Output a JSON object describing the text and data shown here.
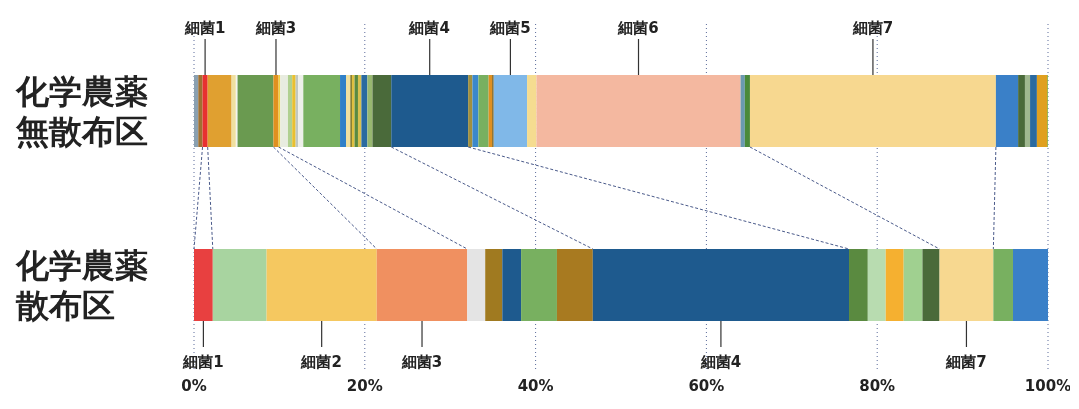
{
  "chart_data": {
    "type": "bar",
    "orientation": "horizontal",
    "stacked": true,
    "categories": [
      "化学農薬無散布区",
      "化学農薬散布区"
    ],
    "series": [
      {
        "values": [
          0.5,
          null
        ],
        "color": "#8aa0b0"
      },
      {
        "values": [
          0.5,
          null
        ],
        "color": "#a07030"
      },
      {
        "name": "細菌1",
        "values": [
          0.6,
          2.2
        ],
        "colors": [
          "#e83030",
          "#e84040"
        ]
      },
      {
        "values": [
          2.8,
          null
        ],
        "color": "#e0a030"
      },
      {
        "values": [
          0.5,
          null
        ],
        "color": "#f0e0a0"
      },
      {
        "values": [
          0.2,
          null
        ],
        "color": "#f4f4f0"
      },
      {
        "values": [
          4.2,
          null
        ],
        "color": "#6a9a50"
      },
      {
        "values": [
          null,
          6.3
        ],
        "color": "#a8d4a0"
      },
      {
        "name": "細菌2",
        "values": [
          null,
          12.9
        ],
        "color": "#f5c860"
      },
      {
        "name": "細菌3",
        "values": [
          0.6,
          10.6
        ],
        "colors": [
          "#e09020",
          "#f09060"
        ]
      },
      {
        "values": [
          0.2,
          null
        ],
        "color": "#f0d040"
      },
      {
        "values": [
          0.9,
          null
        ],
        "color": "#e8ece0"
      },
      {
        "values": [
          0.5,
          null
        ],
        "color": "#b0d090"
      },
      {
        "values": [
          0.4,
          null
        ],
        "color": "#e8c030"
      },
      {
        "values": [
          0.3,
          null
        ],
        "color": "#c0c8c0"
      },
      {
        "values": [
          0.6,
          null
        ],
        "color": "#eef0ea"
      },
      {
        "values": [
          4.3,
          null
        ],
        "color": "#78b060"
      },
      {
        "values": [
          0.7,
          null
        ],
        "color": "#3080c8"
      },
      {
        "values": [
          0.5,
          null
        ],
        "color": "#f0e0a0"
      },
      {
        "values": [
          0.2,
          null
        ],
        "color": "#8a8030"
      },
      {
        "values": [
          0.3,
          null
        ],
        "color": "#e0c040"
      },
      {
        "values": [
          0.4,
          null
        ],
        "color": "#5a8a40"
      },
      {
        "values": [
          0.4,
          null
        ],
        "color": "#d8c050"
      },
      {
        "values": [
          0.7,
          null
        ],
        "color": "#2a6aa0"
      },
      {
        "values": [
          0.6,
          null
        ],
        "color": "#98b870"
      },
      {
        "values": [
          2.2,
          null
        ],
        "color": "#4a6a3a"
      },
      {
        "values": [
          null,
          2.1
        ],
        "color": "#e4e4e4"
      },
      {
        "values": [
          null,
          2.0
        ],
        "color": "#a07a20"
      },
      {
        "values": [
          null,
          2.2
        ],
        "color": "#1e5a8e"
      },
      {
        "values": [
          null,
          4.2
        ],
        "color": "#78b060"
      },
      {
        "values": [
          null,
          4.2
        ],
        "color": "#a87a20"
      },
      {
        "name": "細菌4",
        "values": [
          9.0,
          30.0
        ],
        "colors": [
          "#1e5a8e",
          "#1e5a8e"
        ]
      },
      {
        "values": [
          0.5,
          null
        ],
        "color": "#a09040"
      },
      {
        "values": [
          0.7,
          null
        ],
        "color": "#3a88cc"
      },
      {
        "values": [
          1.2,
          null
        ],
        "color": "#78b060"
      },
      {
        "values": [
          0.4,
          null
        ],
        "color": "#e09020"
      },
      {
        "values": [
          0.2,
          null
        ],
        "color": "#8a7030"
      },
      {
        "name": "細菌5",
        "values": [
          3.9,
          null
        ],
        "color": "#80b8e8"
      },
      {
        "values": [
          1.1,
          null
        ],
        "color": "#f5dc90"
      },
      {
        "name": "細菌6",
        "values": [
          23.9,
          null
        ],
        "color": "#f4b8a0"
      },
      {
        "values": [
          0.5,
          null
        ],
        "color": "#6a9ab0"
      },
      {
        "values": [
          0.6,
          null
        ],
        "color": "#4a8a3a"
      },
      {
        "values": [
          null,
          2.2
        ],
        "color": "#5a8a40"
      },
      {
        "values": [
          null,
          2.1
        ],
        "color": "#b8dcb0"
      },
      {
        "values": [
          null,
          2.1
        ],
        "color": "#f5b030"
      },
      {
        "values": [
          null,
          2.2
        ],
        "color": "#a0d090"
      },
      {
        "values": [
          null,
          2.0
        ],
        "color": "#4a6a3a"
      },
      {
        "name": "細菌7",
        "values": [
          28.8,
          6.3
        ],
        "colors": [
          "#f7d890",
          "#f7d890"
        ]
      },
      {
        "values": [
          2.6,
          null
        ],
        "color": "#3a80c8"
      },
      {
        "values": [
          0.8,
          null
        ],
        "color": "#4a6a3a"
      },
      {
        "values": [
          0.6,
          null
        ],
        "color": "#a0b890"
      },
      {
        "values": [
          0.8,
          null
        ],
        "color": "#2a6aa0"
      },
      {
        "values": [
          1.2,
          null
        ],
        "color": "#e0a020"
      },
      {
        "values": [
          0.1,
          null
        ],
        "color": "#90b040"
      },
      {
        "values": [
          null,
          2.3
        ],
        "color": "#78b060"
      },
      {
        "values": [
          null,
          4.1
        ],
        "color": "#3a80c8"
      }
    ],
    "xlim": [
      0,
      100
    ],
    "xticks": [
      {
        "value": 0,
        "label": "0%"
      },
      {
        "value": 20,
        "label": "20%"
      },
      {
        "value": 40,
        "label": "40%"
      },
      {
        "value": 60,
        "label": "60%"
      },
      {
        "value": 80,
        "label": "80%"
      },
      {
        "value": 100,
        "label": "100%"
      }
    ],
    "grid": "x"
  }
}
